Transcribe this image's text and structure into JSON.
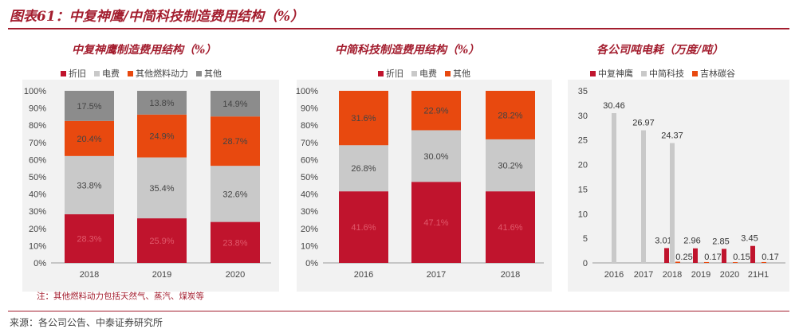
{
  "figure_title": "图表61：中复神鹰/中简科技制造费用结构（%）",
  "note": "注：其他燃料动力包括天然气、蒸汽、煤炭等",
  "source": "来源：各公司公告、中泰证券研究所",
  "colors": {
    "red": "#c0142d",
    "gray_light": "#c9c9c9",
    "orange": "#e8490f",
    "gray_dark": "#8c8c8c",
    "title": "#a31d2e"
  },
  "chart_data": [
    {
      "type": "bar",
      "stacked": true,
      "title": "中复神鹰制造费用结构（%）",
      "categories": [
        "2018",
        "2019",
        "2020"
      ],
      "series": [
        {
          "name": "折旧",
          "values": [
            28.3,
            25.9,
            23.8
          ],
          "labels": [
            "28.3%",
            "25.9%",
            "23.8%"
          ],
          "color": "#c0142d"
        },
        {
          "name": "电费",
          "values": [
            33.8,
            35.4,
            32.6
          ],
          "labels": [
            "33.8%",
            "35.4%",
            "32.6%"
          ],
          "color": "#c9c9c9"
        },
        {
          "name": "其他燃料动力",
          "values": [
            20.4,
            24.9,
            28.7
          ],
          "labels": [
            "20.4%",
            "24.9%",
            "28.7%"
          ],
          "color": "#e8490f"
        },
        {
          "name": "其他",
          "values": [
            17.5,
            13.8,
            14.9
          ],
          "labels": [
            "17.5%",
            "13.8%",
            "14.9%"
          ],
          "color": "#8c8c8c"
        }
      ],
      "ylim": [
        0,
        100
      ],
      "yticks": [
        "0%",
        "10%",
        "20%",
        "30%",
        "40%",
        "50%",
        "60%",
        "70%",
        "80%",
        "90%",
        "100%"
      ],
      "legend_position": "top"
    },
    {
      "type": "bar",
      "stacked": true,
      "title": "中简科技制造费用结构（%）",
      "categories": [
        "2016",
        "2017",
        "2018"
      ],
      "series": [
        {
          "name": "折旧",
          "values": [
            41.6,
            47.1,
            41.6
          ],
          "labels": [
            "41.6%",
            "47.1%",
            "41.6%"
          ],
          "color": "#c0142d"
        },
        {
          "name": "电费",
          "values": [
            26.8,
            30.0,
            30.2
          ],
          "labels": [
            "26.8%",
            "30.0%",
            "30.2%"
          ],
          "color": "#c9c9c9"
        },
        {
          "name": "其他",
          "values": [
            31.6,
            22.9,
            28.2
          ],
          "labels": [
            "31.6%",
            "22.9%",
            "28.2%"
          ],
          "color": "#e8490f"
        }
      ],
      "ylim": [
        0,
        100
      ],
      "yticks": [
        "0%",
        "10%",
        "20%",
        "30%",
        "40%",
        "50%",
        "60%",
        "70%",
        "80%",
        "90%",
        "100%"
      ],
      "legend_position": "top"
    },
    {
      "type": "bar",
      "title": "各公司吨电耗（万度/吨）",
      "categories": [
        "2016",
        "2017",
        "2018",
        "2019",
        "2020",
        "21H1"
      ],
      "series": [
        {
          "name": "中复神鹰",
          "values": [
            null,
            null,
            3.01,
            2.96,
            2.85,
            3.45
          ],
          "labels": [
            "",
            "",
            "3.01",
            "2.96",
            "2.85",
            "3.45"
          ],
          "color": "#c0142d"
        },
        {
          "name": "中简科技",
          "values": [
            30.46,
            26.97,
            24.37,
            null,
            null,
            null
          ],
          "labels": [
            "30.46",
            "26.97",
            "24.37",
            "",
            "",
            ""
          ],
          "color": "#c9c9c9"
        },
        {
          "name": "吉林碳谷",
          "values": [
            null,
            null,
            0.25,
            0.17,
            0.15,
            0.17
          ],
          "labels": [
            "",
            "",
            "0.25",
            "0.17",
            "0.15",
            "0.17"
          ],
          "color": "#e8490f"
        }
      ],
      "ylim": [
        0,
        35
      ],
      "yticks": [
        "0",
        "5",
        "10",
        "15",
        "20",
        "25",
        "30",
        "35"
      ],
      "legend_position": "top"
    }
  ]
}
